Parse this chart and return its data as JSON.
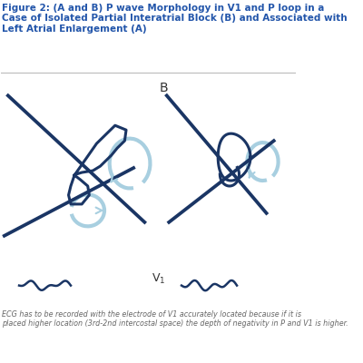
{
  "background_color": "#ffffff",
  "dark_blue": "#1a3564",
  "light_blue": "#a8cfe0",
  "title_color": "#2255aa",
  "text_color": "#666666",
  "title": "Figure 2: (A and B) P wave Morphology in V1 and P loop in a\nCase of Isolated Partial Interatrial Block (B) and Associated with\nLeft Atrial Enlargement (A)",
  "title_fontsize": 7.5,
  "footnote": "ECG has to be recorded with the electrode of V1 accurately located because if it is\nplaced higher location (3rd-2nd intercostal space) the depth of negativity in P and V1 is higher.",
  "footnote_fontsize": 5.8,
  "label_B": "B",
  "label_V1": "V",
  "lw_lines": 2.4,
  "lw_loop": 2.2,
  "lw_arrow": 3.0,
  "lw_wave": 1.8
}
